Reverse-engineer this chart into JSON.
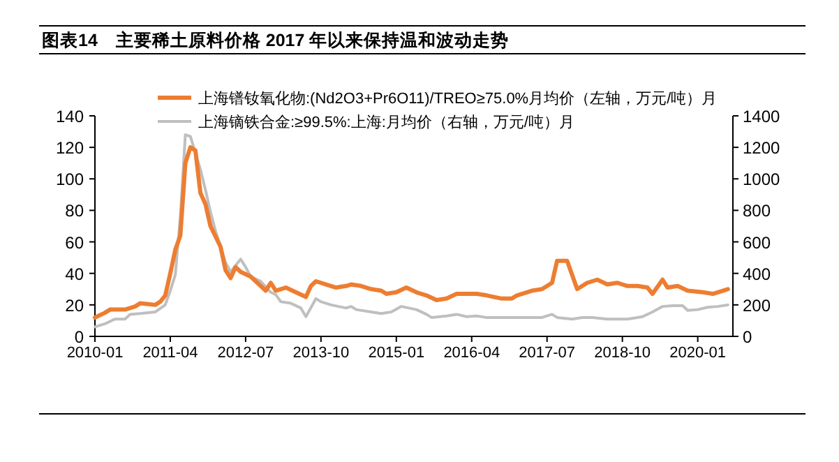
{
  "chart_data": {
    "type": "line",
    "title": "图表14　主要稀土原料价格 2017 年以来保持温和波动走势",
    "legend": "top",
    "grid": false,
    "marker": "none",
    "line_style": "solid",
    "xlim": [
      "2010-01",
      "2020-08"
    ],
    "xticks": [
      "2010-01",
      "2011-04",
      "2012-07",
      "2013-10",
      "2015-01",
      "2016-04",
      "2017-07",
      "2018-10",
      "2020-01"
    ],
    "ylim": [
      0,
      140
    ],
    "yticks": [
      0,
      20,
      40,
      60,
      80,
      100,
      120,
      140
    ],
    "y2lim": [
      0,
      1400
    ],
    "y2ticks": [
      0,
      200,
      400,
      600,
      800,
      1000,
      1200,
      1400
    ],
    "series": [
      {
        "name": "上海镨钕氧化物:(Nd2O3+Pr6O11)/TREO≥75.0%月均价（左轴，万元/吨）月",
        "color": "#ed7d31",
        "x": [
          "2010-01",
          "2010-03",
          "2010-04",
          "2010-07",
          "2010-09",
          "2010-10",
          "2011-01",
          "2011-02",
          "2011-03",
          "2011-04",
          "2011-05",
          "2011-06",
          "2011-07",
          "2011-08",
          "2011-09",
          "2011-10",
          "2011-11",
          "2011-12",
          "2012-02",
          "2012-03",
          "2012-04",
          "2012-05",
          "2012-06",
          "2012-08",
          "2012-09",
          "2012-11",
          "2012-12",
          "2013-01",
          "2013-03",
          "2013-05",
          "2013-07",
          "2013-08",
          "2013-09",
          "2013-11",
          "2014-01",
          "2014-03",
          "2014-04",
          "2014-06",
          "2014-08",
          "2014-10",
          "2014-11",
          "2015-01",
          "2015-03",
          "2015-05",
          "2015-07",
          "2015-09",
          "2015-11",
          "2016-01",
          "2016-03",
          "2016-05",
          "2016-07",
          "2016-10",
          "2016-12",
          "2017-01",
          "2017-04",
          "2017-06",
          "2017-08",
          "2017-09",
          "2017-11",
          "2017-12",
          "2018-01",
          "2018-03",
          "2018-05",
          "2018-07",
          "2018-09",
          "2018-11",
          "2019-01",
          "2019-03",
          "2019-04",
          "2019-06",
          "2019-07",
          "2019-09",
          "2019-11",
          "2020-02",
          "2020-04",
          "2020-06",
          "2020-07"
        ],
        "values": [
          12,
          15,
          17,
          17,
          19,
          21,
          20,
          22,
          26,
          40,
          55,
          64,
          110,
          120,
          118,
          91,
          84,
          70,
          57,
          42,
          37,
          44,
          41,
          38,
          35,
          29,
          34,
          29,
          31,
          28,
          25,
          32,
          35,
          33,
          31,
          32,
          33,
          32,
          30,
          29,
          27,
          28,
          31,
          28,
          26,
          23,
          24,
          27,
          27,
          27,
          26,
          24,
          24,
          26,
          29,
          30,
          34,
          48,
          48,
          39,
          30,
          34,
          36,
          33,
          34,
          32,
          32,
          31,
          27,
          36,
          31,
          32,
          29,
          28,
          27,
          29,
          30
        ]
      },
      {
        "name": "上海镝铁合金:≥99.5%:上海:月均价（右轴，万元/吨）月",
        "color": "#bfbfbf",
        "axis": "y2",
        "x": [
          "2010-01",
          "2010-03",
          "2010-05",
          "2010-07",
          "2010-08",
          "2010-10",
          "2011-01",
          "2011-03",
          "2011-04",
          "2011-05",
          "2011-06",
          "2011-07",
          "2011-08",
          "2011-10",
          "2011-11",
          "2011-12",
          "2012-01",
          "2012-03",
          "2012-04",
          "2012-06",
          "2012-07",
          "2012-08",
          "2012-10",
          "2012-12",
          "2013-01",
          "2013-02",
          "2013-04",
          "2013-06",
          "2013-07",
          "2013-09",
          "2013-10",
          "2013-12",
          "2014-03",
          "2014-04",
          "2014-05",
          "2014-08",
          "2014-10",
          "2014-12",
          "2015-02",
          "2015-05",
          "2015-07",
          "2015-08",
          "2015-11",
          "2016-01",
          "2016-03",
          "2016-05",
          "2016-07",
          "2016-11",
          "2017-02",
          "2017-06",
          "2017-08",
          "2017-09",
          "2017-12",
          "2018-02",
          "2018-04",
          "2018-07",
          "2018-11",
          "2019-01",
          "2019-02",
          "2019-04",
          "2019-06",
          "2019-08",
          "2019-10",
          "2019-11",
          "2020-01",
          "2020-03",
          "2020-05",
          "2020-07"
        ],
        "values": [
          60,
          80,
          110,
          110,
          140,
          145,
          155,
          200,
          290,
          390,
          760,
          1280,
          1270,
          1060,
          930,
          790,
          670,
          470,
          410,
          490,
          440,
          380,
          350,
          280,
          265,
          220,
          210,
          180,
          125,
          240,
          220,
          200,
          180,
          190,
          170,
          155,
          145,
          155,
          190,
          170,
          140,
          120,
          130,
          140,
          125,
          130,
          120,
          120,
          120,
          120,
          140,
          120,
          110,
          120,
          120,
          110,
          110,
          120,
          125,
          155,
          190,
          195,
          195,
          165,
          170,
          185,
          190,
          200
        ]
      }
    ]
  }
}
